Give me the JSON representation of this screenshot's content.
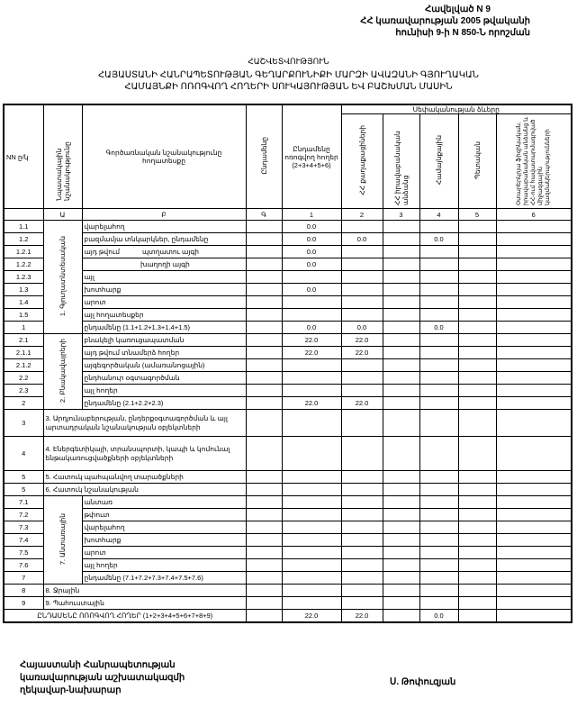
{
  "annex": {
    "line1": "Հավելված N 9",
    "line2": "ՀՀ կառավարության 2005 թվականի",
    "line3": "հունիսի 9-ի N 850-Ն որոշման"
  },
  "title": {
    "doc_type": "ՀԱՇՎԵՏՎՈՒԹՅՈՒՆ",
    "line1": "ՀԱՅԱՍՏԱՆԻ ՀԱՆՐԱՊԵՏՈՒԹՅԱՆ ԳԵՂԱՐՔՈՒՆԻՔԻ ՄԱՐԶԻ ԱՎԱԶԱՆԻ ԳՅՈՒՂԱԿԱՆ",
    "line2": "ՀԱՄԱՅՆՔԻ ՈՌՈԳՎՈՂ ՀՈՂԵՐԻ ՍՈՒԿԱՅՈՒԹՅԱՆ ԵՎ ԲԱՇԽՄԱՆ ՄԱՍԻՆ"
  },
  "table": {
    "headers": {
      "nn": "NN ը/կ",
      "purpose": "Նպատակային նշանակությունը",
      "function": "Գործառնական նշանակությունը հողատեսքը",
      "total": "Ընդամենը",
      "irrigated": "Ընդամենը ոռոգվող հողեր (2+3+4+5+6)",
      "ownership": "Սեփականության ձևերը",
      "citizens": "ՀՀ քաղաքացիների",
      "legal": "ՀՀ իրավաբանական անձանց",
      "community": "Համայնքային",
      "state": "Պետական",
      "foreign": "Օտարերկրյա ֆիզիկական, իրավաբանական անձանց և ՀՀ-ում հավատարմագրված միջազգային կազմակերպությունների"
    },
    "letters": [
      "",
      "Ա",
      "Բ",
      "Գ",
      "1",
      "2",
      "3",
      "4",
      "5",
      "6"
    ],
    "groups": {
      "g1": "1. Գյուղատնտեսական",
      "g2": "2. Բնակավայրերի",
      "g7": "7. Անտառային"
    },
    "rows": [
      {
        "nn": "1.1",
        "desc": "վարելահող",
        "group": "g1",
        "span": 9,
        "v": [
          "",
          "0.0",
          "",
          "",
          "",
          "",
          ""
        ]
      },
      {
        "nn": "1.2",
        "desc": "բազմամյա տնկարկներ, ընդամենը",
        "v": [
          "",
          "0.0",
          "0.0",
          "",
          "0.0",
          "",
          ""
        ]
      },
      {
        "nn": "1.2.1",
        "desc": "այդ թվում            պտղատու այգի",
        "v": [
          "",
          "0.0",
          "",
          "",
          "",
          "",
          ""
        ]
      },
      {
        "nn": "1.2.2",
        "desc": "                              խաղողի այգի",
        "v": [
          "",
          "0.0",
          "",
          "",
          "",
          "",
          ""
        ]
      },
      {
        "nn": "1.2.3",
        "desc": "այլ",
        "v": [
          "",
          "",
          "",
          "",
          "",
          "",
          ""
        ]
      },
      {
        "nn": "1.3",
        "desc": "խոտհարք",
        "v": [
          "",
          "0.0",
          "",
          "",
          "",
          "",
          ""
        ]
      },
      {
        "nn": "1.4",
        "desc": "արոտ",
        "v": [
          "",
          "",
          "",
          "",
          "",
          "",
          ""
        ]
      },
      {
        "nn": "1.5",
        "desc": "այլ հողատեսքեր",
        "v": [
          "",
          "",
          "",
          "",
          "",
          "",
          ""
        ]
      },
      {
        "nn": "1",
        "desc": "ընդամենը (1.1+1.2+1.3+1.4+1.5)",
        "v": [
          "",
          "0.0",
          "0.0",
          "",
          "0.0",
          "",
          ""
        ]
      },
      {
        "nn": "2.1",
        "desc": "բնակելի կառուցապատման",
        "group": "g2",
        "span": 6,
        "v": [
          "",
          "22.0",
          "22.0",
          "",
          "",
          "",
          ""
        ]
      },
      {
        "nn": "2.1.1",
        "desc": "այդ թվում տնամերձ հողեր",
        "v": [
          "",
          "22.0",
          "22.0",
          "",
          "",
          "",
          ""
        ]
      },
      {
        "nn": "2.1.2",
        "desc": "այգեգործական (ամառանոցային)",
        "v": [
          "",
          "",
          "",
          "",
          "",
          "",
          ""
        ]
      },
      {
        "nn": "2.2",
        "desc": "ընդհանուր օգտագործման",
        "v": [
          "",
          "",
          "",
          "",
          "",
          "",
          ""
        ]
      },
      {
        "nn": "2.3",
        "desc": "այլ հողեր",
        "v": [
          "",
          "",
          "",
          "",
          "",
          "",
          ""
        ]
      },
      {
        "nn": "2",
        "desc": "ընդամենը (2.1+2.2+2.3)",
        "v": [
          "",
          "22.0",
          "22.0",
          "",
          "",
          "",
          ""
        ]
      },
      {
        "nn": "3",
        "desc": "3. Արդյունաբերության, ընդերքօգտագործման և այլ արտադրական նշանակության օբյեկտների",
        "wide": true,
        "h": 30,
        "v": [
          "",
          "",
          "",
          "",
          "",
          "",
          ""
        ]
      },
      {
        "nn": "4",
        "desc": "4. Էներգետիկայի, տրանսպորտի, կապի և կոմունալ ենթակառուցվածքների օբյեկտների",
        "wide": true,
        "h": 38,
        "v": [
          "",
          "",
          "",
          "",
          "",
          "",
          ""
        ]
      },
      {
        "nn": "5",
        "desc": "5. Հատուկ պահպանվող տարածքների",
        "wide": true,
        "v": [
          "",
          "",
          "",
          "",
          "",
          "",
          ""
        ]
      },
      {
        "nn": "5",
        "desc": "6. Հատուկ նշանակության",
        "wide": true,
        "v": [
          "",
          "",
          "",
          "",
          "",
          "",
          ""
        ]
      },
      {
        "nn": "7.1",
        "desc": "անտառ",
        "group": "g7",
        "span": 7,
        "v": [
          "",
          "",
          "",
          "",
          "",
          "",
          ""
        ]
      },
      {
        "nn": "7.2",
        "desc": "թփուտ",
        "v": [
          "",
          "",
          "",
          "",
          "",
          "",
          ""
        ]
      },
      {
        "nn": "7.3",
        "desc": "վարելահող",
        "v": [
          "",
          "",
          "",
          "",
          "",
          "",
          ""
        ]
      },
      {
        "nn": "7.4",
        "desc": "խոտհարք",
        "v": [
          "",
          "",
          "",
          "",
          "",
          "",
          ""
        ]
      },
      {
        "nn": "7.5",
        "desc": "արոտ",
        "v": [
          "",
          "",
          "",
          "",
          "",
          "",
          ""
        ]
      },
      {
        "nn": "7.6",
        "desc": "այլ հողեր",
        "v": [
          "",
          "",
          "",
          "",
          "",
          "",
          ""
        ]
      },
      {
        "nn": "7",
        "desc": "ընդամենը (7.1+7.2+7.3+7.4+7.5+7.6)",
        "v": [
          "",
          "",
          "",
          "",
          "",
          "",
          ""
        ]
      },
      {
        "nn": "8",
        "desc": "8. Ջրային",
        "wide": true,
        "v": [
          "",
          "",
          "",
          "",
          "",
          "",
          ""
        ]
      },
      {
        "nn": "9",
        "desc": "9. Պահուստային",
        "wide": true,
        "v": [
          "",
          "",
          "",
          "",
          "",
          "",
          ""
        ]
      }
    ],
    "total_row": {
      "label": "ԸՆԴԱՄԵՆԸ ՈՌՈԳՎՈՂ ՀՈՂԵՐ (1+2+3+4+5+6+7+8+9)",
      "v": [
        "",
        "22.0",
        "22.0",
        "",
        "0.0",
        "",
        ""
      ]
    }
  },
  "signature": {
    "position_line1": "Հայաստանի Հանրապետության",
    "position_line2": "կառավարության աշխատակազմի",
    "position_line3": "ղեկավար-նախարար",
    "name": "Ս. Թոփուզյան"
  }
}
